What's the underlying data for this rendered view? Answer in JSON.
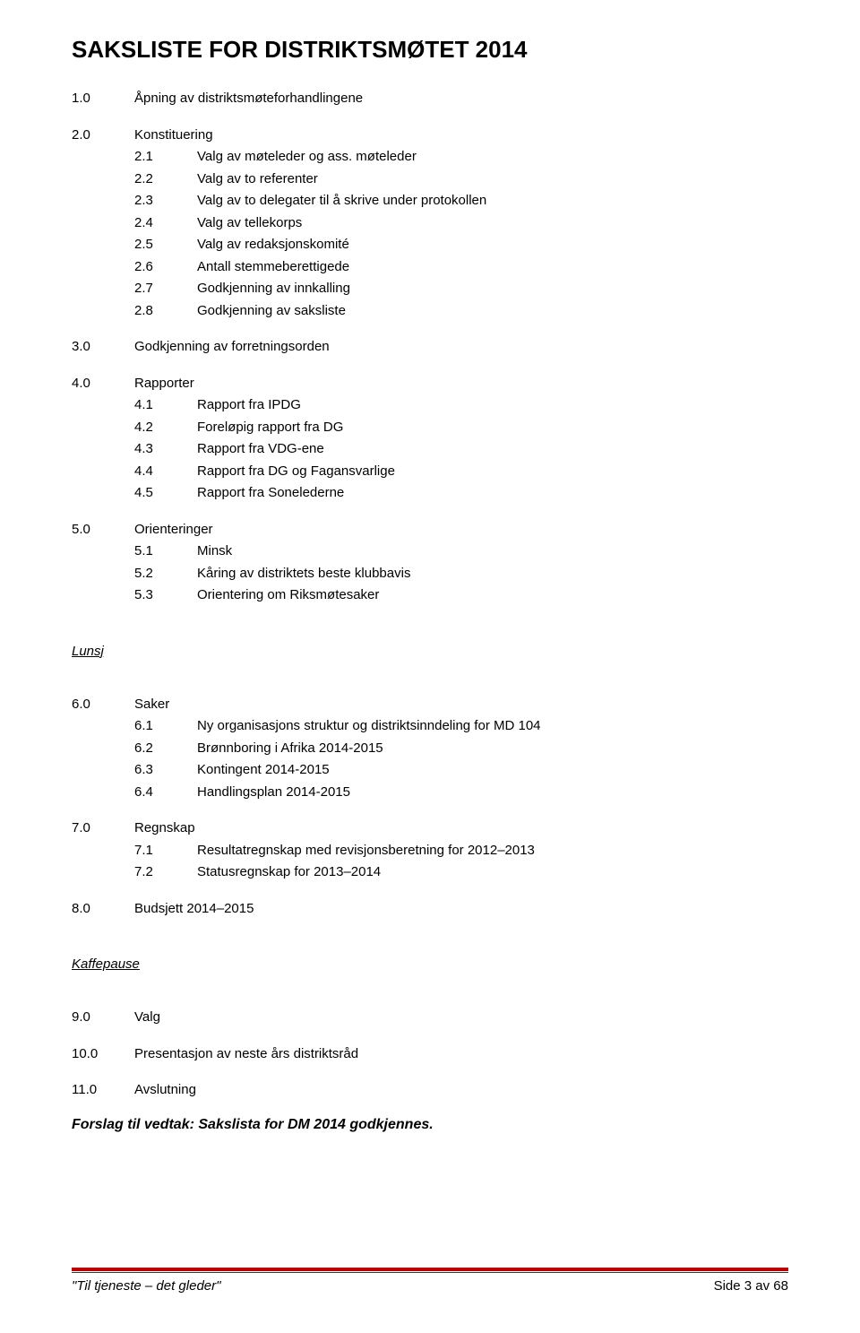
{
  "title": "SAKSLISTE FOR DISTRIKTSMØTET 2014",
  "sections": [
    {
      "num": "1.0",
      "text": "Åpning av distriktsmøteforhandlingene",
      "subs": []
    },
    {
      "num": "2.0",
      "text": "Konstituering",
      "subs": [
        {
          "num": "2.1",
          "text": "Valg av møteleder og ass. møteleder"
        },
        {
          "num": "2.2",
          "text": "Valg av to referenter"
        },
        {
          "num": "2.3",
          "text": "Valg av to delegater til å skrive under protokollen"
        },
        {
          "num": "2.4",
          "text": "Valg av tellekorps"
        },
        {
          "num": "2.5",
          "text": "Valg av redaksjonskomité"
        },
        {
          "num": "2.6",
          "text": "Antall stemmeberettigede"
        },
        {
          "num": "2.7",
          "text": "Godkjenning av innkalling"
        },
        {
          "num": "2.8",
          "text": "Godkjenning av saksliste"
        }
      ]
    },
    {
      "num": "3.0",
      "text": "Godkjenning av forretningsorden",
      "subs": []
    },
    {
      "num": "4.0",
      "text": "Rapporter",
      "subs": [
        {
          "num": "4.1",
          "text": "Rapport fra IPDG"
        },
        {
          "num": "4.2",
          "text": "Foreløpig rapport fra DG"
        },
        {
          "num": "4.3",
          "text": "Rapport fra VDG-ene"
        },
        {
          "num": "4.4",
          "text": "Rapport fra DG og Fagansvarlige"
        },
        {
          "num": "4.5",
          "text": "Rapport fra Sonelederne"
        }
      ]
    },
    {
      "num": "5.0",
      "text": "Orienteringer",
      "subs": [
        {
          "num": "5.1",
          "text": "Minsk"
        },
        {
          "num": "5.2",
          "text": "Kåring av distriktets beste klubbavis"
        },
        {
          "num": "5.3",
          "text": "Orientering om Riksmøtesaker"
        }
      ]
    }
  ],
  "lunsj_label": "Lunsj",
  "sections2": [
    {
      "num": "6.0",
      "text": "Saker",
      "subs": [
        {
          "num": "6.1",
          "text": "Ny organisasjons struktur og distriktsinndeling for MD 104"
        },
        {
          "num": "6.2",
          "text": "Brønnboring i Afrika 2014-2015"
        },
        {
          "num": "6.3",
          "text": "Kontingent 2014-2015"
        },
        {
          "num": "6.4",
          "text": "Handlingsplan 2014-2015"
        }
      ]
    },
    {
      "num": "7.0",
      "text": "Regnskap",
      "subs": [
        {
          "num": "7.1",
          "text": "Resultatregnskap med revisjonsberetning for 2012–2013"
        },
        {
          "num": "7.2",
          "text": "Statusregnskap for 2013–2014"
        }
      ]
    },
    {
      "num": "8.0",
      "text": "Budsjett 2014–2015",
      "subs": []
    }
  ],
  "kaffe_label": "Kaffepause",
  "sections3": [
    {
      "num": "9.0",
      "text": "Valg",
      "subs": []
    },
    {
      "num": "10.0",
      "text": "Presentasjon av neste års distriktsråd",
      "subs": []
    },
    {
      "num": "11.0",
      "text": "Avslutning",
      "subs": []
    }
  ],
  "forslag": "Forslag til vedtak: Sakslista for DM 2014 godkjennes.",
  "footer_left": "\"Til tjeneste – det gleder\"",
  "footer_right": "Side 3 av 68",
  "colors": {
    "footer_line": "#c00000",
    "text": "#000000",
    "background": "#ffffff"
  },
  "fonts": {
    "title_size": 26,
    "body_size": 15,
    "forslag_size": 16
  }
}
